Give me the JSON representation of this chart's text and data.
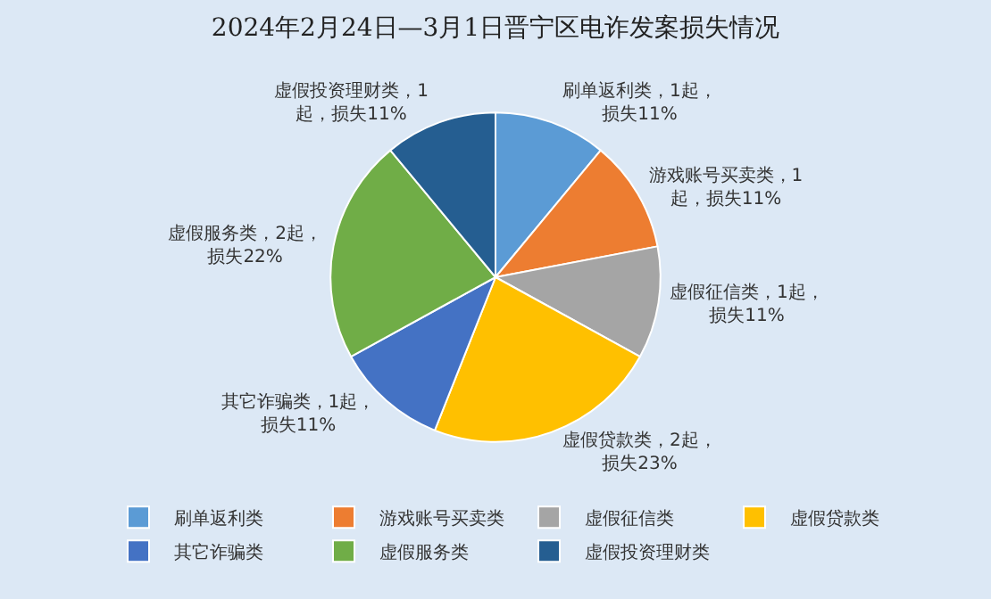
{
  "chart_data": {
    "type": "pie",
    "title": "2024年2月24日—3月1日晋宁区电诈发案损失情况",
    "categories": [
      "刷单返利类",
      "游戏账号买卖类",
      "虚假征信类",
      "虚假贷款类",
      "其它诈骗类",
      "虚假服务类",
      "虚假投资理财类"
    ],
    "values": [
      11,
      11,
      11,
      23,
      11,
      22,
      11
    ],
    "colors": [
      "#5b9bd5",
      "#ed7d31",
      "#a5a5a5",
      "#ffc000",
      "#4472c4",
      "#70ad47",
      "#255e91"
    ],
    "value_labels": [
      "刷单返利类，1起，损失11%",
      "游戏账号买卖类，1起，损失11%",
      "虚假征信类，1起，损失11%",
      "虚假贷款类，2起，损失23%",
      "其它诈骗类，1起，损失11%",
      "虚假服务类，2起，损失22%",
      "虚假投资理财类，1起，损失11%"
    ],
    "legend": "bottom"
  }
}
